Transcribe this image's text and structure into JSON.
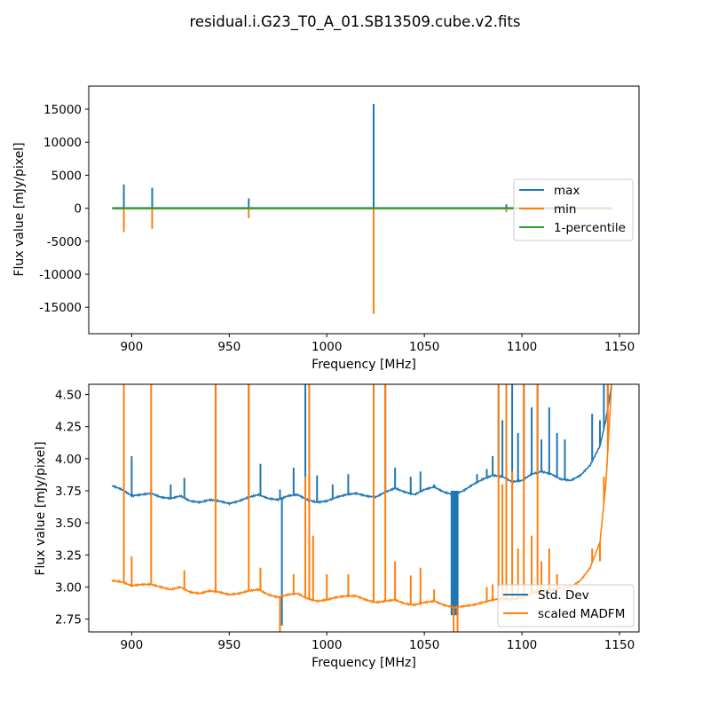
{
  "figure": {
    "title": "residual.i.G23_T0_A_01.SB13509.cube.v2.fits"
  },
  "chart_data": [
    {
      "type": "line",
      "xlabel": "Frequency [MHz]",
      "ylabel": "Flux value [mJy/pixel]",
      "xlim": [
        878,
        1160
      ],
      "ylim": [
        -19000,
        18500
      ],
      "xticks": [
        900,
        950,
        1000,
        1050,
        1100,
        1150
      ],
      "yticks": [
        -15000,
        -10000,
        -5000,
        0,
        5000,
        10000,
        15000
      ],
      "legend_position": "center-right",
      "series": [
        {
          "name": "max",
          "color": "#1f77b4",
          "baseline": 30,
          "range": [
            890,
            1146
          ],
          "spikes": [
            [
              896,
              3600
            ],
            [
              910.5,
              3100
            ],
            [
              960,
              1500
            ],
            [
              1024,
              15800
            ],
            [
              1092,
              600
            ]
          ]
        },
        {
          "name": "min",
          "color": "#ff7f0e",
          "baseline": -30,
          "range": [
            890,
            1146
          ],
          "spikes": [
            [
              896,
              -3600
            ],
            [
              910.5,
              -3100
            ],
            [
              960,
              -1500
            ],
            [
              1024,
              -16000
            ],
            [
              1092,
              -600
            ]
          ]
        },
        {
          "name": "1-percentile",
          "color": "#2ca02c",
          "baseline": -20,
          "range": [
            890,
            1146
          ],
          "spikes": []
        }
      ]
    },
    {
      "type": "line",
      "xlabel": "Frequency [MHz]",
      "ylabel": "Flux value [mJy/pixel]",
      "xlim": [
        878,
        1160
      ],
      "ylim": [
        2.65,
        4.58
      ],
      "xticks": [
        900,
        950,
        1000,
        1050,
        1100,
        1150
      ],
      "yticks": [
        2.75,
        3.0,
        3.25,
        3.5,
        3.75,
        4.0,
        4.25,
        4.5
      ],
      "legend_position": "lower-right",
      "series": [
        {
          "name": "Std. Dev",
          "color": "#1f77b4",
          "points": [
            [
              890,
              3.79
            ],
            [
              895,
              3.76
            ],
            [
              900,
              3.71
            ],
            [
              905,
              3.72
            ],
            [
              910,
              3.73
            ],
            [
              915,
              3.7
            ],
            [
              920,
              3.69
            ],
            [
              925,
              3.71
            ],
            [
              930,
              3.67
            ],
            [
              935,
              3.66
            ],
            [
              940,
              3.68
            ],
            [
              945,
              3.67
            ],
            [
              950,
              3.65
            ],
            [
              955,
              3.67
            ],
            [
              960,
              3.7
            ],
            [
              965,
              3.72
            ],
            [
              970,
              3.69
            ],
            [
              975,
              3.68
            ],
            [
              980,
              3.71
            ],
            [
              985,
              3.72
            ],
            [
              990,
              3.68
            ],
            [
              995,
              3.66
            ],
            [
              1000,
              3.67
            ],
            [
              1005,
              3.7
            ],
            [
              1010,
              3.72
            ],
            [
              1015,
              3.73
            ],
            [
              1020,
              3.71
            ],
            [
              1025,
              3.7
            ],
            [
              1030,
              3.74
            ],
            [
              1035,
              3.77
            ],
            [
              1040,
              3.74
            ],
            [
              1045,
              3.72
            ],
            [
              1050,
              3.76
            ],
            [
              1055,
              3.78
            ],
            [
              1060,
              3.74
            ],
            [
              1065,
              3.72
            ],
            [
              1070,
              3.75
            ],
            [
              1075,
              3.8
            ],
            [
              1080,
              3.84
            ],
            [
              1085,
              3.87
            ],
            [
              1090,
              3.86
            ],
            [
              1095,
              3.82
            ],
            [
              1100,
              3.83
            ],
            [
              1105,
              3.88
            ],
            [
              1110,
              3.9
            ],
            [
              1115,
              3.88
            ],
            [
              1120,
              3.84
            ],
            [
              1125,
              3.83
            ],
            [
              1130,
              3.87
            ],
            [
              1135,
              3.95
            ],
            [
              1140,
              4.1
            ],
            [
              1143,
              4.3
            ],
            [
              1146,
              4.58
            ]
          ],
          "spikes": [
            [
              900,
              4.02
            ],
            [
              910,
              3.78
            ],
            [
              920,
              3.8
            ],
            [
              927,
              3.85
            ],
            [
              943,
              4.58
            ],
            [
              960,
              4.58
            ],
            [
              966,
              3.96
            ],
            [
              976,
              3.76
            ],
            [
              977,
              2.7
            ],
            [
              983,
              3.93
            ],
            [
              989,
              4.58
            ],
            [
              991,
              4.58
            ],
            [
              995,
              3.87
            ],
            [
              1003,
              3.8
            ],
            [
              1011,
              3.88
            ],
            [
              1024,
              4.58
            ],
            [
              1030,
              4.58
            ],
            [
              1035,
              3.93
            ],
            [
              1043,
              3.86
            ],
            [
              1048,
              3.9
            ],
            [
              1055,
              3.8
            ],
            [
              1065,
              3.72
            ],
            [
              1067,
              3.72
            ],
            [
              1077,
              3.88
            ],
            [
              1082,
              3.92
            ],
            [
              1085,
              4.02
            ],
            [
              1088,
              4.58
            ],
            [
              1090,
              4.3
            ],
            [
              1092,
              4.58
            ],
            [
              1095,
              4.58
            ],
            [
              1098,
              4.2
            ],
            [
              1101,
              4.58
            ],
            [
              1105,
              4.4
            ],
            [
              1108,
              4.58
            ],
            [
              1110,
              4.15
            ],
            [
              1114,
              4.4
            ],
            [
              1118,
              4.2
            ],
            [
              1122,
              4.15
            ],
            [
              1136,
              4.35
            ],
            [
              1140,
              4.3
            ],
            [
              1142,
              4.58
            ],
            [
              1144,
              4.58
            ]
          ],
          "band": [
            1063.5,
            1067.5,
            2.78,
            3.75
          ]
        },
        {
          "name": "scaled MADFM",
          "color": "#ff7f0e",
          "points": [
            [
              890,
              3.05
            ],
            [
              895,
              3.04
            ],
            [
              900,
              3.01
            ],
            [
              905,
              3.02
            ],
            [
              910,
              3.02
            ],
            [
              915,
              3.0
            ],
            [
              920,
              2.98
            ],
            [
              925,
              3.0
            ],
            [
              930,
              2.96
            ],
            [
              935,
              2.95
            ],
            [
              940,
              2.97
            ],
            [
              945,
              2.96
            ],
            [
              950,
              2.94
            ],
            [
              955,
              2.95
            ],
            [
              960,
              2.97
            ],
            [
              965,
              2.98
            ],
            [
              970,
              2.94
            ],
            [
              975,
              2.92
            ],
            [
              980,
              2.94
            ],
            [
              985,
              2.95
            ],
            [
              990,
              2.91
            ],
            [
              995,
              2.89
            ],
            [
              1000,
              2.9
            ],
            [
              1005,
              2.92
            ],
            [
              1010,
              2.93
            ],
            [
              1015,
              2.93
            ],
            [
              1020,
              2.9
            ],
            [
              1025,
              2.88
            ],
            [
              1030,
              2.89
            ],
            [
              1035,
              2.9
            ],
            [
              1040,
              2.87
            ],
            [
              1045,
              2.86
            ],
            [
              1050,
              2.88
            ],
            [
              1055,
              2.89
            ],
            [
              1060,
              2.86
            ],
            [
              1065,
              2.84
            ],
            [
              1070,
              2.85
            ],
            [
              1075,
              2.86
            ],
            [
              1080,
              2.88
            ],
            [
              1085,
              2.9
            ],
            [
              1090,
              2.91
            ],
            [
              1095,
              2.9
            ],
            [
              1100,
              2.92
            ],
            [
              1105,
              2.95
            ],
            [
              1110,
              2.97
            ],
            [
              1115,
              2.98
            ],
            [
              1120,
              2.99
            ],
            [
              1125,
              3.0
            ],
            [
              1130,
              3.05
            ],
            [
              1135,
              3.15
            ],
            [
              1140,
              3.35
            ],
            [
              1143,
              3.8
            ],
            [
              1146,
              4.58
            ]
          ],
          "spikes": [
            [
              896,
              4.58
            ],
            [
              900,
              3.24
            ],
            [
              910,
              4.58
            ],
            [
              927,
              3.13
            ],
            [
              943,
              4.58
            ],
            [
              960,
              4.58
            ],
            [
              966,
              3.15
            ],
            [
              976,
              2.65
            ],
            [
              983,
              3.1
            ],
            [
              989,
              3.86
            ],
            [
              991,
              4.58
            ],
            [
              993,
              3.4
            ],
            [
              1000,
              3.1
            ],
            [
              1011,
              3.1
            ],
            [
              1024,
              4.58
            ],
            [
              1030,
              4.58
            ],
            [
              1035,
              3.2
            ],
            [
              1043,
              3.09
            ],
            [
              1048,
              3.15
            ],
            [
              1055,
              2.98
            ],
            [
              1065,
              2.65
            ],
            [
              1067,
              2.65
            ],
            [
              1082,
              3.0
            ],
            [
              1085,
              3.02
            ],
            [
              1088,
              4.58
            ],
            [
              1090,
              3.8
            ],
            [
              1092,
              4.58
            ],
            [
              1095,
              3.9
            ],
            [
              1098,
              3.3
            ],
            [
              1101,
              4.58
            ],
            [
              1105,
              3.4
            ],
            [
              1108,
              4.58
            ],
            [
              1110,
              3.2
            ],
            [
              1114,
              3.3
            ],
            [
              1118,
              3.1
            ],
            [
              1136,
              3.3
            ],
            [
              1140,
              3.2
            ],
            [
              1142,
              3.86
            ],
            [
              1144,
              4.58
            ]
          ]
        }
      ]
    }
  ]
}
